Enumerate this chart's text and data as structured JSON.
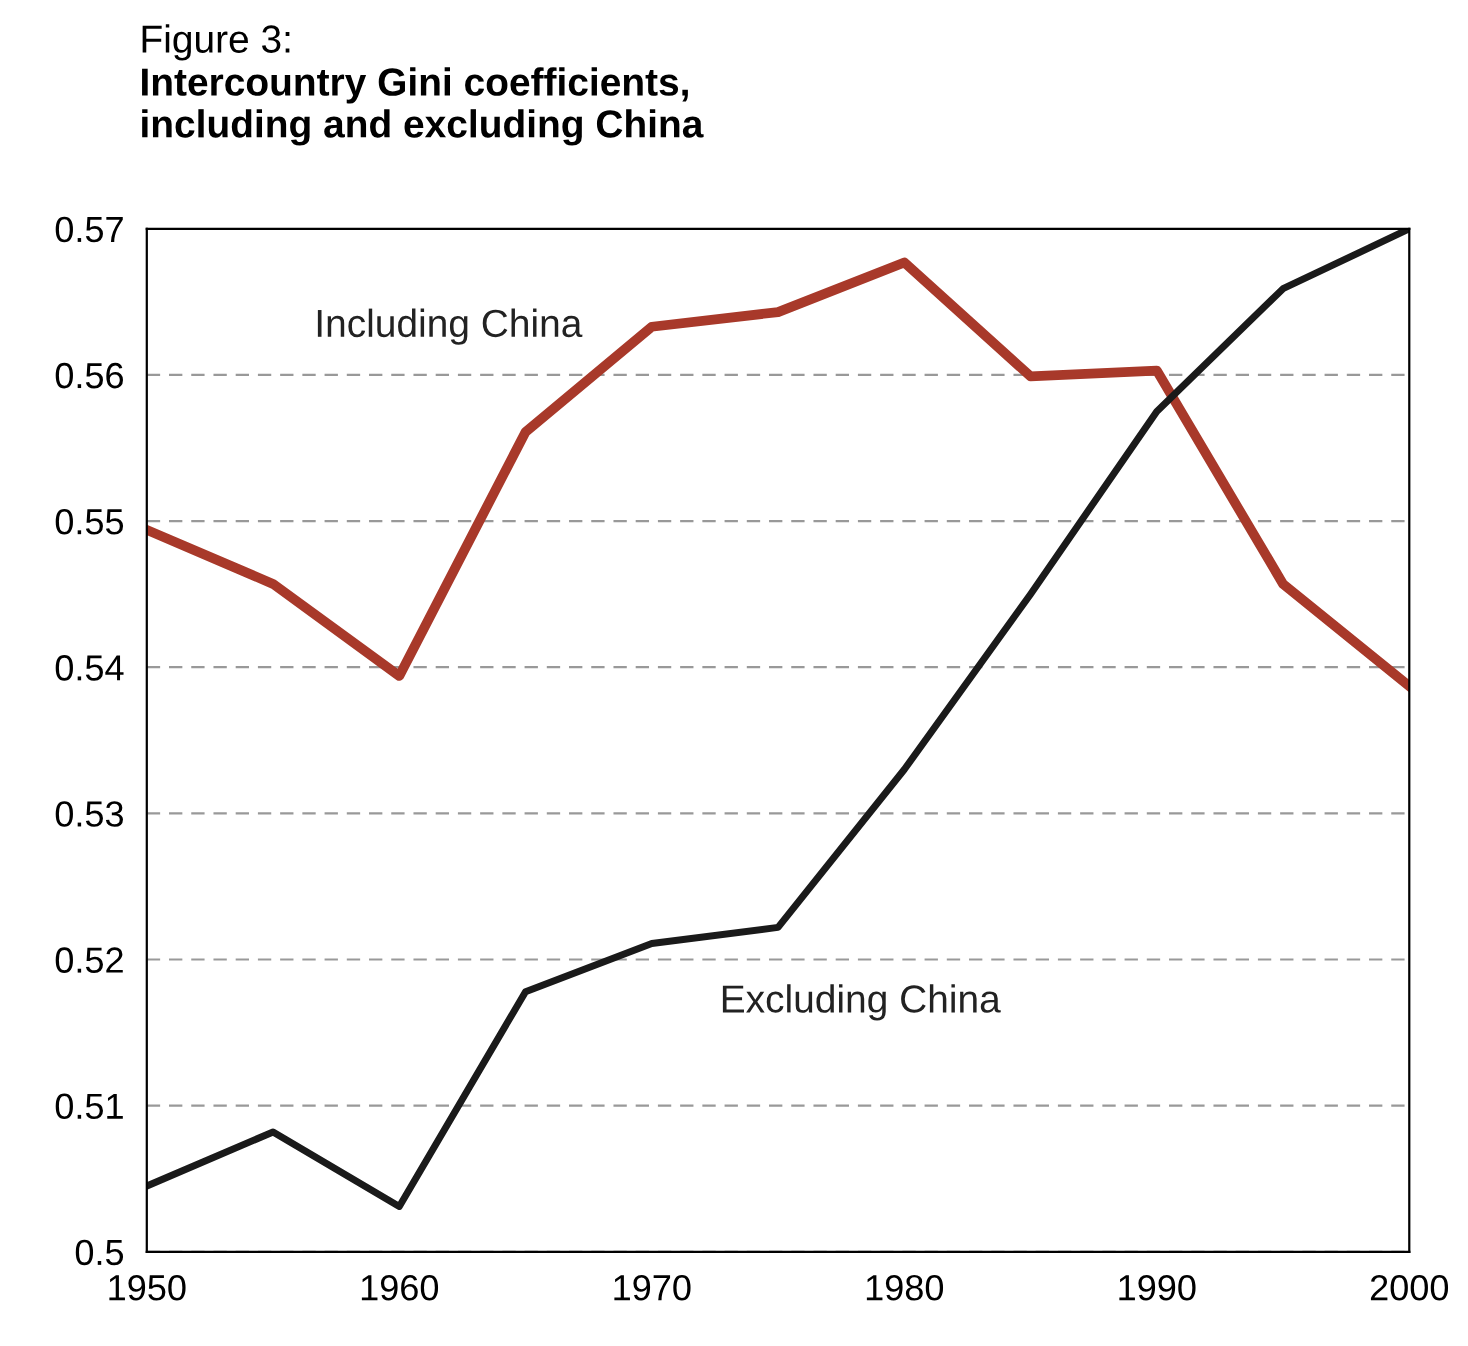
{
  "chart_data": {
    "type": "line",
    "title": "Figure 3:",
    "subtitle": "Intercountry Gini coefficients,\nincluding and excluding China",
    "x": [
      1950,
      1955,
      1960,
      1965,
      1970,
      1975,
      1980,
      1985,
      1990,
      1995,
      2000
    ],
    "series": [
      {
        "name": "Including China",
        "color": "#a8392a",
        "values": [
          0.5494,
          0.5457,
          0.5394,
          0.5561,
          0.5633,
          0.5643,
          0.5677,
          0.5599,
          0.5603,
          0.5457,
          0.5387
        ]
      },
      {
        "name": "Excluding China",
        "color": "#1a1a1a",
        "values": [
          0.5045,
          0.5082,
          0.5031,
          0.5178,
          0.5211,
          0.5222,
          0.533,
          0.545,
          0.5575,
          0.5659,
          0.57
        ]
      }
    ],
    "xlim": [
      1950,
      2000
    ],
    "xticks": [
      1950,
      1960,
      1970,
      1980,
      1990,
      2000
    ],
    "ylim": [
      0.5,
      0.57
    ],
    "yticks": [
      {
        "value": 0.5,
        "label": "0.5"
      },
      0.51,
      0.52,
      0.53,
      0.54,
      0.55,
      0.56,
      0.57
    ],
    "grid": "y",
    "legend": false,
    "marker": "none",
    "line_style": "solid"
  }
}
